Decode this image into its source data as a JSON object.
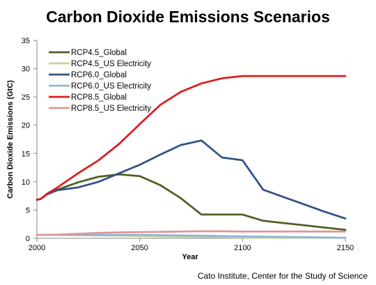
{
  "chart_data": {
    "type": "line",
    "title": "Carbon Dioxide Emissions Scenarios",
    "xlabel": "Year",
    "ylabel": "Carbon Dioxide Emissions (GtC)",
    "xlim": [
      2000,
      2150
    ],
    "ylim": [
      0,
      35
    ],
    "xticks": [
      "2000",
      "2050",
      "2100",
      "2150"
    ],
    "yticks": [
      "0",
      "5",
      "10",
      "15",
      "20",
      "25",
      "30",
      "35"
    ],
    "grid": false,
    "legend_position": "top-left",
    "credit": "Cato Institute, Center for the Study of Science",
    "series": [
      {
        "name": "RCP4.5_Global",
        "color": "#4f5f22",
        "points": [
          [
            2000,
            6.8
          ],
          [
            2002,
            7.0
          ],
          [
            2005,
            7.8
          ],
          [
            2010,
            8.6
          ],
          [
            2020,
            9.9
          ],
          [
            2030,
            10.9
          ],
          [
            2040,
            11.3
          ],
          [
            2050,
            11.0
          ],
          [
            2060,
            9.4
          ],
          [
            2070,
            7.1
          ],
          [
            2080,
            4.2
          ],
          [
            2090,
            4.2
          ],
          [
            2100,
            4.2
          ],
          [
            2110,
            3.1
          ],
          [
            2120,
            2.7
          ],
          [
            2130,
            2.3
          ],
          [
            2140,
            1.9
          ],
          [
            2150,
            1.5
          ]
        ]
      },
      {
        "name": "RCP4.5_US Electricity",
        "color": "#c3d69b",
        "points": [
          [
            2000,
            0.6
          ],
          [
            2010,
            0.6
          ],
          [
            2020,
            0.55
          ],
          [
            2030,
            0.5
          ],
          [
            2040,
            0.45
          ],
          [
            2050,
            0.4
          ],
          [
            2060,
            0.35
          ],
          [
            2070,
            0.3
          ],
          [
            2080,
            0.25
          ],
          [
            2090,
            0.2
          ],
          [
            2100,
            0.15
          ],
          [
            2110,
            0.1
          ],
          [
            2120,
            0.1
          ],
          [
            2130,
            0.1
          ],
          [
            2140,
            0.1
          ],
          [
            2150,
            0.1
          ]
        ]
      },
      {
        "name": "RCP6.0_Global",
        "color": "#325287",
        "points": [
          [
            2000,
            6.8
          ],
          [
            2002,
            7.0
          ],
          [
            2005,
            7.8
          ],
          [
            2010,
            8.5
          ],
          [
            2020,
            9.0
          ],
          [
            2030,
            10.0
          ],
          [
            2040,
            11.5
          ],
          [
            2050,
            13.0
          ],
          [
            2060,
            14.8
          ],
          [
            2070,
            16.5
          ],
          [
            2080,
            17.3
          ],
          [
            2090,
            14.3
          ],
          [
            2100,
            13.8
          ],
          [
            2110,
            8.6
          ],
          [
            2120,
            7.3
          ],
          [
            2130,
            6.0
          ],
          [
            2140,
            4.7
          ],
          [
            2150,
            3.5
          ]
        ]
      },
      {
        "name": "RCP6.0_US Electricity",
        "color": "#93b3d7",
        "points": [
          [
            2000,
            0.6
          ],
          [
            2010,
            0.6
          ],
          [
            2020,
            0.6
          ],
          [
            2030,
            0.6
          ],
          [
            2040,
            0.6
          ],
          [
            2050,
            0.6
          ],
          [
            2060,
            0.55
          ],
          [
            2070,
            0.5
          ],
          [
            2080,
            0.45
          ],
          [
            2090,
            0.4
          ],
          [
            2100,
            0.35
          ],
          [
            2110,
            0.3
          ],
          [
            2120,
            0.25
          ],
          [
            2130,
            0.2
          ],
          [
            2140,
            0.15
          ],
          [
            2150,
            0.1
          ]
        ]
      },
      {
        "name": "RCP8.5_Global",
        "color": "#dd1c1c",
        "points": [
          [
            2000,
            6.8
          ],
          [
            2002,
            7.0
          ],
          [
            2005,
            7.9
          ],
          [
            2010,
            9.0
          ],
          [
            2020,
            11.5
          ],
          [
            2030,
            13.8
          ],
          [
            2040,
            16.7
          ],
          [
            2050,
            20.2
          ],
          [
            2060,
            23.6
          ],
          [
            2070,
            25.9
          ],
          [
            2080,
            27.4
          ],
          [
            2090,
            28.3
          ],
          [
            2100,
            28.7
          ],
          [
            2110,
            28.7
          ],
          [
            2120,
            28.7
          ],
          [
            2130,
            28.7
          ],
          [
            2140,
            28.7
          ],
          [
            2150,
            28.7
          ]
        ]
      },
      {
        "name": "RCP8.5_US Electricity",
        "color": "#dd9696",
        "points": [
          [
            2000,
            0.6
          ],
          [
            2010,
            0.65
          ],
          [
            2020,
            0.8
          ],
          [
            2030,
            0.95
          ],
          [
            2040,
            1.05
          ],
          [
            2050,
            1.1
          ],
          [
            2060,
            1.15
          ],
          [
            2070,
            1.2
          ],
          [
            2080,
            1.25
          ],
          [
            2090,
            1.25
          ],
          [
            2100,
            1.2
          ],
          [
            2110,
            1.2
          ],
          [
            2120,
            1.2
          ],
          [
            2130,
            1.2
          ],
          [
            2140,
            1.2
          ],
          [
            2150,
            1.2
          ]
        ]
      }
    ]
  }
}
